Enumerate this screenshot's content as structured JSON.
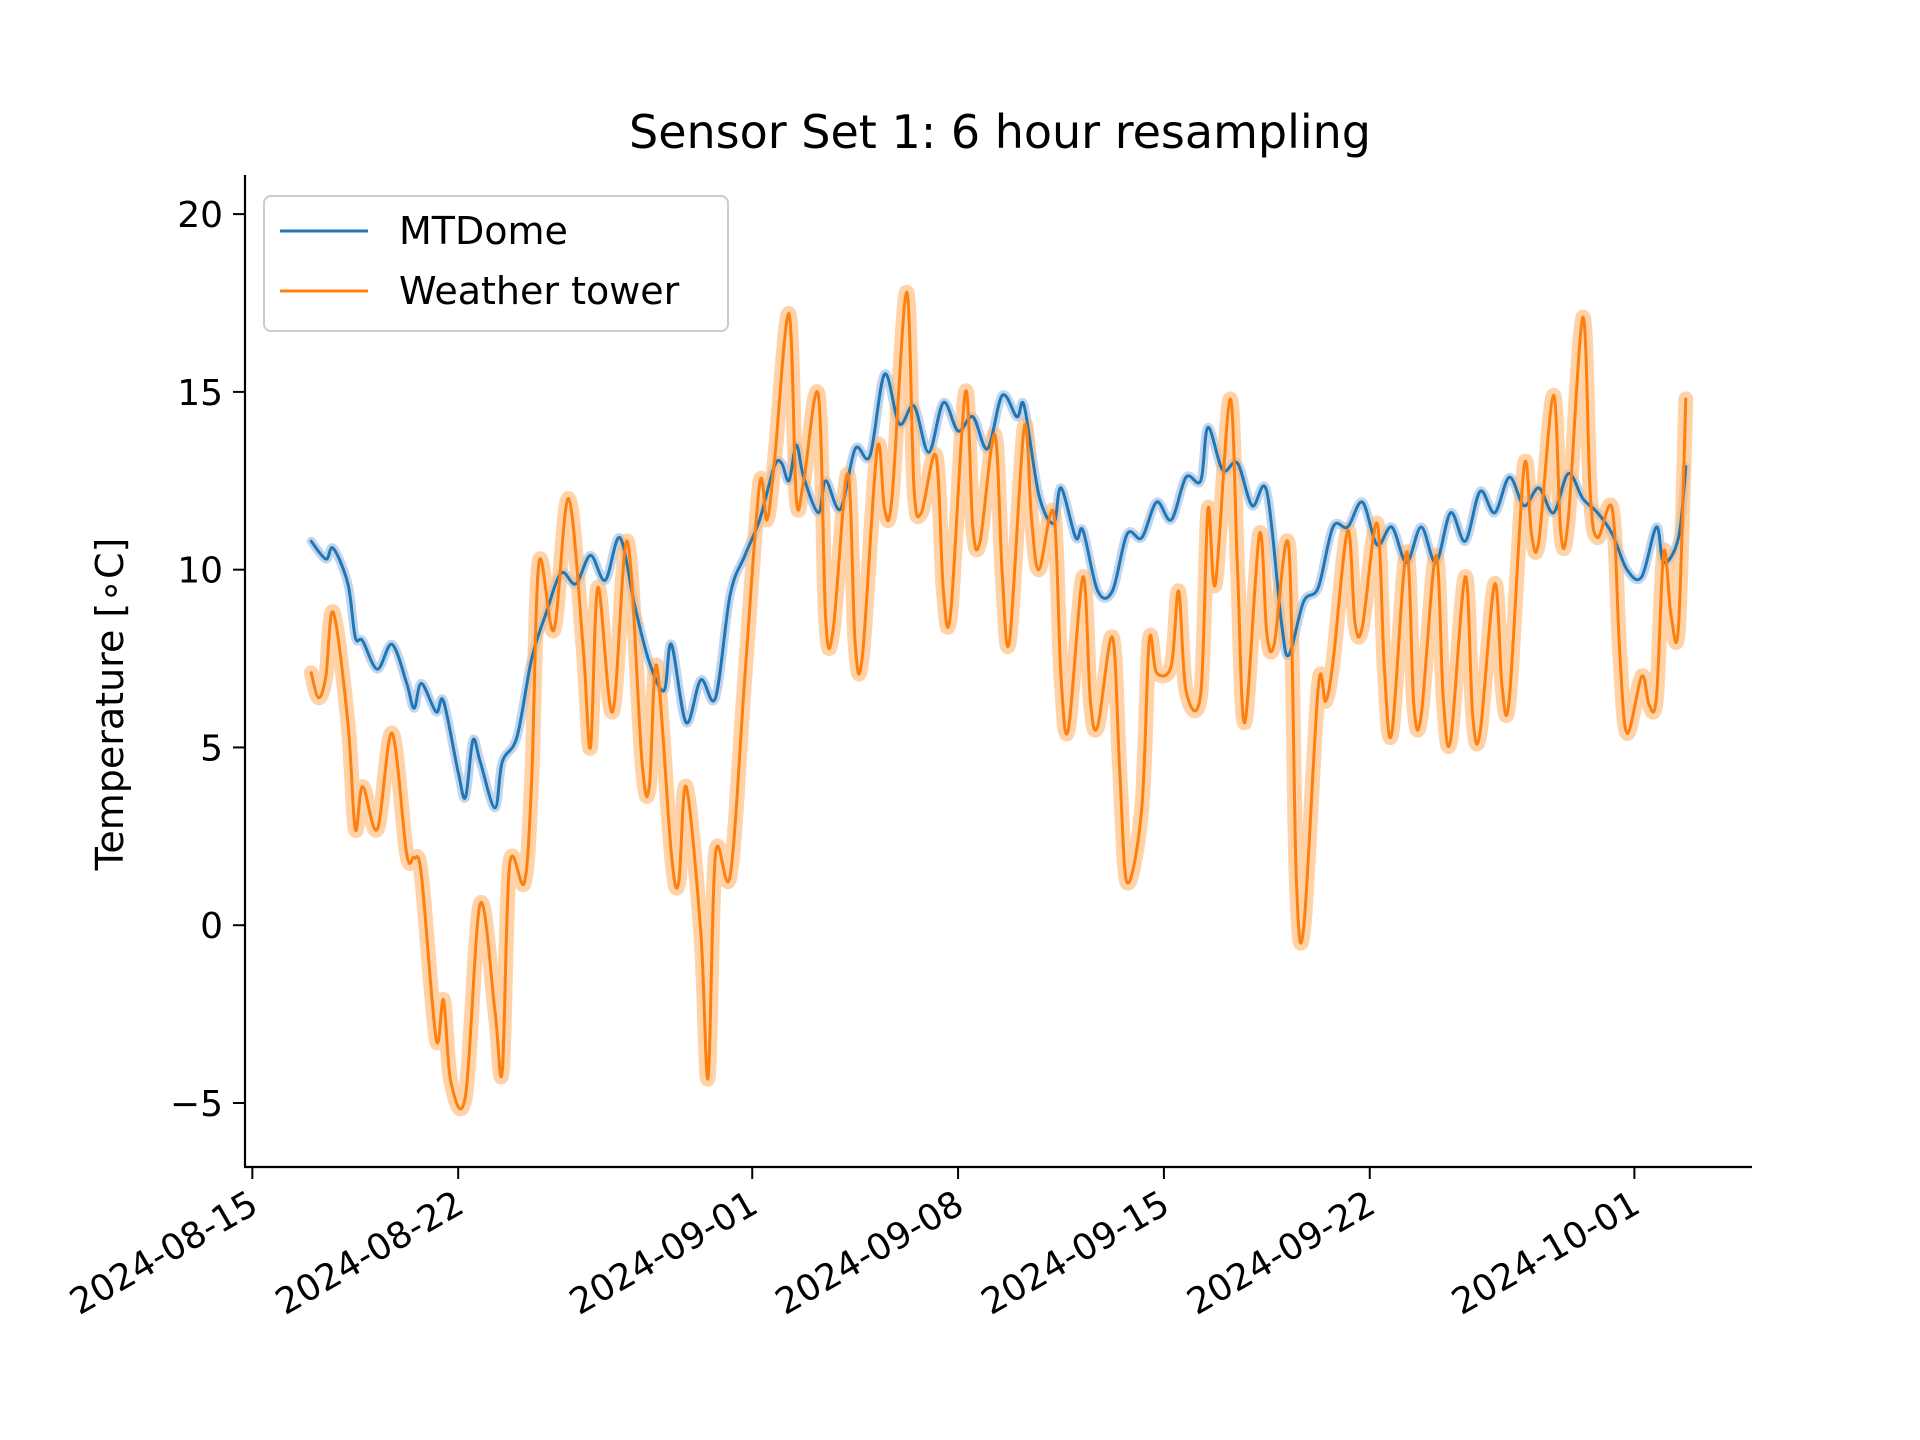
{
  "chart_data": {
    "type": "line",
    "title": "Sensor Set 1: 6 hour resampling",
    "ylabel": "Temperature [∘C]",
    "xlabel": "",
    "x_type": "date",
    "xlim": [
      "2024-08-14T18:00",
      "2024-10-05T00:00"
    ],
    "ylim": [
      -6.8,
      21.1
    ],
    "y_ticks": [
      -5,
      0,
      5,
      10,
      15,
      20
    ],
    "y_tick_labels": [
      "−5",
      "0",
      "5",
      "10",
      "15",
      "20"
    ],
    "x_ticks": [
      "2024-08-15",
      "2024-08-22",
      "2024-09-01",
      "2024-09-08",
      "2024-09-15",
      "2024-09-22",
      "2024-10-01"
    ],
    "x_tick_labels": [
      "2024-08-15",
      "2024-08-22",
      "2024-09-01",
      "2024-09-08",
      "2024-09-15",
      "2024-09-22",
      "2024-10-01"
    ],
    "grid": false,
    "legend_position": "top-left",
    "series": [
      {
        "name": "MTDome",
        "color": "#1f77b4",
        "band_color": "#aec7e8",
        "points": [
          [
            "2024-08-17T00:00",
            10.8
          ],
          [
            "2024-08-17T12:00",
            10.3
          ],
          [
            "2024-08-17T18:00",
            10.6
          ],
          [
            "2024-08-18T06:00",
            9.6
          ],
          [
            "2024-08-18T12:00",
            8.1
          ],
          [
            "2024-08-18T18:00",
            8.0
          ],
          [
            "2024-08-19T06:00",
            7.2
          ],
          [
            "2024-08-19T18:00",
            7.9
          ],
          [
            "2024-08-20T06:00",
            6.8
          ],
          [
            "2024-08-20T12:00",
            6.1
          ],
          [
            "2024-08-20T18:00",
            6.8
          ],
          [
            "2024-08-21T06:00",
            6.0
          ],
          [
            "2024-08-21T12:00",
            6.3
          ],
          [
            "2024-08-22T00:00",
            4.3
          ],
          [
            "2024-08-22T06:00",
            3.6
          ],
          [
            "2024-08-22T12:00",
            5.2
          ],
          [
            "2024-08-22T18:00",
            4.6
          ],
          [
            "2024-08-23T06:00",
            3.3
          ],
          [
            "2024-08-23T12:00",
            4.6
          ],
          [
            "2024-08-24T00:00",
            5.3
          ],
          [
            "2024-08-24T12:00",
            7.5
          ],
          [
            "2024-08-25T00:00",
            8.8
          ],
          [
            "2024-08-25T12:00",
            9.9
          ],
          [
            "2024-08-26T00:00",
            9.6
          ],
          [
            "2024-08-26T12:00",
            10.4
          ],
          [
            "2024-08-27T00:00",
            9.7
          ],
          [
            "2024-08-27T12:00",
            10.9
          ],
          [
            "2024-08-28T00:00",
            9.0
          ],
          [
            "2024-08-28T12:00",
            7.4
          ],
          [
            "2024-08-29T00:00",
            6.6
          ],
          [
            "2024-08-29T06:00",
            7.9
          ],
          [
            "2024-08-29T18:00",
            5.7
          ],
          [
            "2024-08-30T06:00",
            6.9
          ],
          [
            "2024-08-30T18:00",
            6.4
          ],
          [
            "2024-08-31T06:00",
            9.3
          ],
          [
            "2024-08-31T18:00",
            10.4
          ],
          [
            "2024-09-01T06:00",
            11.4
          ],
          [
            "2024-09-01T18:00",
            12.9
          ],
          [
            "2024-09-02T00:00",
            13.0
          ],
          [
            "2024-09-02T06:00",
            12.5
          ],
          [
            "2024-09-02T12:00",
            13.5
          ],
          [
            "2024-09-02T18:00",
            12.6
          ],
          [
            "2024-09-03T06:00",
            11.6
          ],
          [
            "2024-09-03T12:00",
            12.5
          ],
          [
            "2024-09-04T00:00",
            11.7
          ],
          [
            "2024-09-04T12:00",
            13.4
          ],
          [
            "2024-09-05T00:00",
            13.2
          ],
          [
            "2024-09-05T12:00",
            15.5
          ],
          [
            "2024-09-06T00:00",
            14.1
          ],
          [
            "2024-09-06T12:00",
            14.6
          ],
          [
            "2024-09-07T00:00",
            13.3
          ],
          [
            "2024-09-07T12:00",
            14.7
          ],
          [
            "2024-09-08T00:00",
            13.9
          ],
          [
            "2024-09-08T12:00",
            14.3
          ],
          [
            "2024-09-09T00:00",
            13.4
          ],
          [
            "2024-09-09T12:00",
            14.9
          ],
          [
            "2024-09-10T00:00",
            14.3
          ],
          [
            "2024-09-10T06:00",
            14.6
          ],
          [
            "2024-09-10T18:00",
            12.1
          ],
          [
            "2024-09-11T06:00",
            11.3
          ],
          [
            "2024-09-11T12:00",
            12.3
          ],
          [
            "2024-09-12T00:00",
            10.9
          ],
          [
            "2024-09-12T06:00",
            11.1
          ],
          [
            "2024-09-12T18:00",
            9.4
          ],
          [
            "2024-09-13T06:00",
            9.4
          ],
          [
            "2024-09-13T18:00",
            11.0
          ],
          [
            "2024-09-14T06:00",
            10.9
          ],
          [
            "2024-09-14T18:00",
            11.9
          ],
          [
            "2024-09-15T06:00",
            11.4
          ],
          [
            "2024-09-15T18:00",
            12.6
          ],
          [
            "2024-09-16T06:00",
            12.5
          ],
          [
            "2024-09-16T12:00",
            14.0
          ],
          [
            "2024-09-17T00:00",
            12.8
          ],
          [
            "2024-09-17T12:00",
            13.0
          ],
          [
            "2024-09-18T00:00",
            11.8
          ],
          [
            "2024-09-18T12:00",
            12.2
          ],
          [
            "2024-09-19T00:00",
            8.5
          ],
          [
            "2024-09-19T06:00",
            7.6
          ],
          [
            "2024-09-19T18:00",
            9.1
          ],
          [
            "2024-09-20T06:00",
            9.5
          ],
          [
            "2024-09-20T18:00",
            11.2
          ],
          [
            "2024-09-21T06:00",
            11.2
          ],
          [
            "2024-09-21T18:00",
            11.9
          ],
          [
            "2024-09-22T06:00",
            10.7
          ],
          [
            "2024-09-22T18:00",
            11.2
          ],
          [
            "2024-09-23T06:00",
            10.2
          ],
          [
            "2024-09-23T18:00",
            11.2
          ],
          [
            "2024-09-24T06:00",
            10.2
          ],
          [
            "2024-09-24T18:00",
            11.6
          ],
          [
            "2024-09-25T06:00",
            10.8
          ],
          [
            "2024-09-25T18:00",
            12.2
          ],
          [
            "2024-09-26T06:00",
            11.6
          ],
          [
            "2024-09-26T18:00",
            12.6
          ],
          [
            "2024-09-27T06:00",
            11.8
          ],
          [
            "2024-09-27T18:00",
            12.3
          ],
          [
            "2024-09-28T06:00",
            11.6
          ],
          [
            "2024-09-28T18:00",
            12.7
          ],
          [
            "2024-09-29T06:00",
            12.0
          ],
          [
            "2024-09-29T18:00",
            11.6
          ],
          [
            "2024-09-30T06:00",
            11.0
          ],
          [
            "2024-09-30T18:00",
            10.0
          ],
          [
            "2024-10-01T06:00",
            9.8
          ],
          [
            "2024-10-01T18:00",
            11.2
          ],
          [
            "2024-10-02T00:00",
            10.2
          ],
          [
            "2024-10-02T12:00",
            10.9
          ],
          [
            "2024-10-02T18:00",
            12.9
          ]
        ]
      },
      {
        "name": "Weather tower",
        "color": "#ff7f0e",
        "band_color": "#ffbb78",
        "points": [
          [
            "2024-08-17T00:00",
            7.1
          ],
          [
            "2024-08-17T06:00",
            6.4
          ],
          [
            "2024-08-17T12:00",
            7.0
          ],
          [
            "2024-08-17T18:00",
            8.8
          ],
          [
            "2024-08-18T06:00",
            5.7
          ],
          [
            "2024-08-18T12:00",
            2.7
          ],
          [
            "2024-08-18T18:00",
            3.9
          ],
          [
            "2024-08-19T06:00",
            2.7
          ],
          [
            "2024-08-19T18:00",
            5.4
          ],
          [
            "2024-08-20T06:00",
            2.0
          ],
          [
            "2024-08-20T12:00",
            1.9
          ],
          [
            "2024-08-20T18:00",
            1.4
          ],
          [
            "2024-08-21T06:00",
            -3.2
          ],
          [
            "2024-08-21T12:00",
            -2.1
          ],
          [
            "2024-08-21T18:00",
            -4.4
          ],
          [
            "2024-08-22T06:00",
            -4.8
          ],
          [
            "2024-08-22T18:00",
            0.6
          ],
          [
            "2024-08-23T06:00",
            -2.4
          ],
          [
            "2024-08-23T12:00",
            -4.1
          ],
          [
            "2024-08-23T18:00",
            1.7
          ],
          [
            "2024-08-24T06:00",
            1.2
          ],
          [
            "2024-08-24T12:00",
            4.1
          ],
          [
            "2024-08-24T18:00",
            10.2
          ],
          [
            "2024-08-25T06:00",
            8.3
          ],
          [
            "2024-08-25T18:00",
            12.0
          ],
          [
            "2024-08-26T06:00",
            7.8
          ],
          [
            "2024-08-26T12:00",
            5.0
          ],
          [
            "2024-08-26T18:00",
            9.5
          ],
          [
            "2024-08-27T06:00",
            6.0
          ],
          [
            "2024-08-27T18:00",
            10.8
          ],
          [
            "2024-08-28T06:00",
            4.6
          ],
          [
            "2024-08-28T12:00",
            3.9
          ],
          [
            "2024-08-28T18:00",
            7.3
          ],
          [
            "2024-08-29T06:00",
            2.0
          ],
          [
            "2024-08-29T12:00",
            1.2
          ],
          [
            "2024-08-29T18:00",
            3.9
          ],
          [
            "2024-08-30T06:00",
            -0.2
          ],
          [
            "2024-08-30T12:00",
            -4.3
          ],
          [
            "2024-08-30T18:00",
            2.0
          ],
          [
            "2024-08-31T06:00",
            1.4
          ],
          [
            "2024-08-31T18:00",
            7.0
          ],
          [
            "2024-09-01T06:00",
            12.4
          ],
          [
            "2024-09-01T12:00",
            11.4
          ],
          [
            "2024-09-01T18:00",
            13.0
          ],
          [
            "2024-09-02T06:00",
            17.2
          ],
          [
            "2024-09-02T12:00",
            12.0
          ],
          [
            "2024-09-02T18:00",
            12.5
          ],
          [
            "2024-09-03T06:00",
            14.9
          ],
          [
            "2024-09-03T12:00",
            8.6
          ],
          [
            "2024-09-03T18:00",
            8.3
          ],
          [
            "2024-09-04T06:00",
            12.7
          ],
          [
            "2024-09-04T12:00",
            7.9
          ],
          [
            "2024-09-04T18:00",
            7.6
          ],
          [
            "2024-09-05T06:00",
            13.4
          ],
          [
            "2024-09-05T12:00",
            11.7
          ],
          [
            "2024-09-05T18:00",
            12.0
          ],
          [
            "2024-09-06T06:00",
            17.8
          ],
          [
            "2024-09-06T12:00",
            12.3
          ],
          [
            "2024-09-06T18:00",
            11.6
          ],
          [
            "2024-09-07T06:00",
            13.2
          ],
          [
            "2024-09-07T12:00",
            9.4
          ],
          [
            "2024-09-07T18:00",
            8.8
          ],
          [
            "2024-09-08T06:00",
            15.0
          ],
          [
            "2024-09-08T12:00",
            11.2
          ],
          [
            "2024-09-08T18:00",
            10.8
          ],
          [
            "2024-09-09T06:00",
            13.8
          ],
          [
            "2024-09-09T12:00",
            9.9
          ],
          [
            "2024-09-09T18:00",
            8.0
          ],
          [
            "2024-09-10T06:00",
            14.0
          ],
          [
            "2024-09-10T12:00",
            11.4
          ],
          [
            "2024-09-10T18:00",
            10.0
          ],
          [
            "2024-09-11T06:00",
            11.6
          ],
          [
            "2024-09-11T12:00",
            7.0
          ],
          [
            "2024-09-11T18:00",
            5.5
          ],
          [
            "2024-09-12T06:00",
            9.8
          ],
          [
            "2024-09-12T12:00",
            6.3
          ],
          [
            "2024-09-12T18:00",
            5.6
          ],
          [
            "2024-09-13T06:00",
            8.1
          ],
          [
            "2024-09-13T12:00",
            4.3
          ],
          [
            "2024-09-13T18:00",
            1.2
          ],
          [
            "2024-09-14T06:00",
            3.3
          ],
          [
            "2024-09-14T12:00",
            8.0
          ],
          [
            "2024-09-14T18:00",
            7.1
          ],
          [
            "2024-09-15T06:00",
            7.3
          ],
          [
            "2024-09-15T12:00",
            9.4
          ],
          [
            "2024-09-15T18:00",
            6.6
          ],
          [
            "2024-09-16T06:00",
            6.5
          ],
          [
            "2024-09-16T12:00",
            11.7
          ],
          [
            "2024-09-16T18:00",
            9.6
          ],
          [
            "2024-09-17T06:00",
            14.8
          ],
          [
            "2024-09-17T12:00",
            10.1
          ],
          [
            "2024-09-17T18:00",
            5.7
          ],
          [
            "2024-09-18T06:00",
            11.0
          ],
          [
            "2024-09-18T12:00",
            8.2
          ],
          [
            "2024-09-18T18:00",
            7.9
          ],
          [
            "2024-09-19T06:00",
            10.6
          ],
          [
            "2024-09-19T12:00",
            1.4
          ],
          [
            "2024-09-19T18:00",
            -0.1
          ],
          [
            "2024-09-20T06:00",
            6.7
          ],
          [
            "2024-09-20T12:00",
            6.3
          ],
          [
            "2024-09-20T18:00",
            7.4
          ],
          [
            "2024-09-21T06:00",
            11.1
          ],
          [
            "2024-09-21T12:00",
            8.5
          ],
          [
            "2024-09-21T18:00",
            8.4
          ],
          [
            "2024-09-22T06:00",
            11.3
          ],
          [
            "2024-09-22T12:00",
            7.2
          ],
          [
            "2024-09-22T18:00",
            5.4
          ],
          [
            "2024-09-23T06:00",
            10.5
          ],
          [
            "2024-09-23T12:00",
            6.2
          ],
          [
            "2024-09-23T18:00",
            5.9
          ],
          [
            "2024-09-24T06:00",
            10.4
          ],
          [
            "2024-09-24T12:00",
            6.4
          ],
          [
            "2024-09-24T18:00",
            5.2
          ],
          [
            "2024-09-25T06:00",
            9.8
          ],
          [
            "2024-09-25T12:00",
            5.9
          ],
          [
            "2024-09-25T18:00",
            5.4
          ],
          [
            "2024-09-26T06:00",
            9.6
          ],
          [
            "2024-09-26T12:00",
            6.7
          ],
          [
            "2024-09-26T18:00",
            6.4
          ],
          [
            "2024-09-27T06:00",
            12.9
          ],
          [
            "2024-09-27T12:00",
            11.0
          ],
          [
            "2024-09-27T18:00",
            10.8
          ],
          [
            "2024-09-28T06:00",
            14.9
          ],
          [
            "2024-09-28T12:00",
            11.0
          ],
          [
            "2024-09-28T18:00",
            11.4
          ],
          [
            "2024-09-29T06:00",
            17.1
          ],
          [
            "2024-09-29T12:00",
            12.1
          ],
          [
            "2024-09-29T18:00",
            10.9
          ],
          [
            "2024-09-30T06:00",
            11.7
          ],
          [
            "2024-09-30T12:00",
            7.7
          ],
          [
            "2024-09-30T18:00",
            5.4
          ],
          [
            "2024-10-01T06:00",
            7.0
          ],
          [
            "2024-10-01T12:00",
            6.2
          ],
          [
            "2024-10-01T18:00",
            6.4
          ],
          [
            "2024-10-02T00:00",
            10.5
          ],
          [
            "2024-10-02T06:00",
            8.7
          ],
          [
            "2024-10-02T12:00",
            8.4
          ],
          [
            "2024-10-02T18:00",
            14.8
          ]
        ]
      }
    ]
  }
}
